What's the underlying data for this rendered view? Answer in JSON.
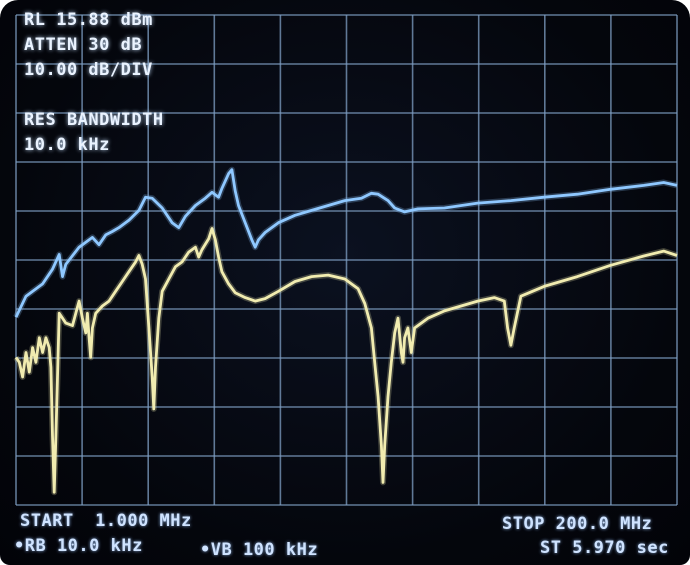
{
  "readout": {
    "ref_level": "RL 15.88 dBm",
    "attenuation": "ATTEN 30 dB",
    "scale": "10.00 dB/DIV",
    "res_bw_title": "RES BANDWIDTH",
    "res_bw_value": "10.0 kHz",
    "start": "START  1.000 MHz",
    "stop": "STOP 200.0 MHz",
    "rbw": "•RB 10.0 kHz",
    "vbw": "•VB 100 kHz",
    "sweep_time": "ST 5.970 sec"
  },
  "colors": {
    "grid": "#7f9fc4",
    "trace_blue": "#8fc8ff",
    "trace_yellow": "#f1ecb0",
    "text": "#cfe3ff"
  },
  "chart_data": {
    "type": "line",
    "title": "",
    "xlabel": "",
    "ylabel": "",
    "x_unit": "MHz",
    "y_unit": "dBm",
    "xlim": [
      1,
      200
    ],
    "ylim": [
      -84.12,
      15.88
    ],
    "x_divisions": 10,
    "y_divisions": 10,
    "grid": true,
    "series": [
      {
        "color": "#8fc8ff",
        "points": [
          [
            1,
            -45.8
          ],
          [
            4,
            -41.5
          ],
          [
            9,
            -39
          ],
          [
            12,
            -36
          ],
          [
            14,
            -33
          ],
          [
            15,
            -37.5
          ],
          [
            16,
            -35
          ],
          [
            20,
            -31.5
          ],
          [
            22,
            -30.5
          ],
          [
            24,
            -29.5
          ],
          [
            26,
            -31
          ],
          [
            28,
            -29
          ],
          [
            30,
            -28.3
          ],
          [
            32,
            -27.5
          ],
          [
            35,
            -26
          ],
          [
            38,
            -24
          ],
          [
            40,
            -21.3
          ],
          [
            42,
            -21.5
          ],
          [
            45,
            -23.5
          ],
          [
            48,
            -26.5
          ],
          [
            50,
            -27.5
          ],
          [
            52,
            -25.2
          ],
          [
            55,
            -23
          ],
          [
            58,
            -21.5
          ],
          [
            60,
            -20.3
          ],
          [
            62,
            -21.3
          ],
          [
            63,
            -19.5
          ],
          [
            65,
            -16.5
          ],
          [
            66,
            -15.7
          ],
          [
            67,
            -20
          ],
          [
            68,
            -23
          ],
          [
            70,
            -26.5
          ],
          [
            72,
            -30
          ],
          [
            73,
            -31.5
          ],
          [
            74,
            -30
          ],
          [
            76,
            -28.5
          ],
          [
            80,
            -26.5
          ],
          [
            85,
            -25
          ],
          [
            90,
            -24
          ],
          [
            95,
            -23
          ],
          [
            100,
            -22
          ],
          [
            105,
            -21.5
          ],
          [
            108,
            -20.5
          ],
          [
            110,
            -20.7
          ],
          [
            113,
            -22
          ],
          [
            115,
            -23.5
          ],
          [
            118,
            -24.3
          ],
          [
            122,
            -23.7
          ],
          [
            130,
            -23.5
          ],
          [
            140,
            -22.5
          ],
          [
            150,
            -22
          ],
          [
            160,
            -21.3
          ],
          [
            170,
            -20.7
          ],
          [
            180,
            -19.7
          ],
          [
            190,
            -18.9
          ],
          [
            196,
            -18.3
          ],
          [
            200,
            -18.9
          ]
        ]
      },
      {
        "color": "#f1ecb0",
        "points": [
          [
            1,
            -54
          ],
          [
            2,
            -55
          ],
          [
            3,
            -58
          ],
          [
            4,
            -53
          ],
          [
            5,
            -57
          ],
          [
            6,
            -52
          ],
          [
            7,
            -55
          ],
          [
            8,
            -50
          ],
          [
            9,
            -53
          ],
          [
            10,
            -50
          ],
          [
            11,
            -52
          ],
          [
            11.5,
            -56
          ],
          [
            12,
            -70
          ],
          [
            12.5,
            -81.5
          ],
          [
            13,
            -70
          ],
          [
            13.5,
            -58
          ],
          [
            14,
            -45
          ],
          [
            15,
            -46
          ],
          [
            16,
            -47
          ],
          [
            18,
            -47.5
          ],
          [
            19,
            -45
          ],
          [
            20,
            -42.5
          ],
          [
            21,
            -46
          ],
          [
            22,
            -49
          ],
          [
            22.5,
            -45
          ],
          [
            23,
            -50
          ],
          [
            23.5,
            -54
          ],
          [
            24,
            -48
          ],
          [
            25,
            -45
          ],
          [
            27,
            -43.5
          ],
          [
            29,
            -42.5
          ],
          [
            31,
            -40.5
          ],
          [
            33,
            -38.5
          ],
          [
            35,
            -36.5
          ],
          [
            37,
            -34.5
          ],
          [
            38,
            -33.2
          ],
          [
            39,
            -35
          ],
          [
            40,
            -38
          ],
          [
            41,
            -48
          ],
          [
            42,
            -58
          ],
          [
            42.5,
            -64.5
          ],
          [
            43,
            -56
          ],
          [
            44,
            -46
          ],
          [
            45,
            -40.5
          ],
          [
            47,
            -38
          ],
          [
            49,
            -35.5
          ],
          [
            51,
            -34.5
          ],
          [
            53,
            -32.5
          ],
          [
            55,
            -31.5
          ],
          [
            56,
            -33.5
          ],
          [
            57,
            -32
          ],
          [
            59,
            -29.8
          ],
          [
            60,
            -27.7
          ],
          [
            61,
            -30
          ],
          [
            62,
            -33.5
          ],
          [
            63,
            -36.5
          ],
          [
            65,
            -39
          ],
          [
            67,
            -40.8
          ],
          [
            70,
            -41.8
          ],
          [
            73,
            -42.5
          ],
          [
            76,
            -42
          ],
          [
            80,
            -40.5
          ],
          [
            85,
            -38.5
          ],
          [
            90,
            -37.5
          ],
          [
            95,
            -37.2
          ],
          [
            100,
            -38
          ],
          [
            104,
            -40
          ],
          [
            106,
            -43
          ],
          [
            108,
            -48
          ],
          [
            109,
            -55
          ],
          [
            110,
            -62
          ],
          [
            111,
            -72
          ],
          [
            111.5,
            -79.5
          ],
          [
            112,
            -72
          ],
          [
            113,
            -62
          ],
          [
            114,
            -55
          ],
          [
            115,
            -49
          ],
          [
            116,
            -46
          ],
          [
            117,
            -53
          ],
          [
            117.5,
            -55
          ],
          [
            118,
            -50
          ],
          [
            119,
            -48
          ],
          [
            120,
            -53
          ],
          [
            121,
            -48
          ],
          [
            125,
            -46
          ],
          [
            130,
            -44.5
          ],
          [
            140,
            -42.5
          ],
          [
            145,
            -41.8
          ],
          [
            148,
            -42.5
          ],
          [
            149,
            -48
          ],
          [
            150,
            -51.5
          ],
          [
            151,
            -48
          ],
          [
            153,
            -41.5
          ],
          [
            160,
            -39.5
          ],
          [
            170,
            -37.5
          ],
          [
            180,
            -35.2
          ],
          [
            190,
            -33.3
          ],
          [
            196,
            -32.3
          ],
          [
            200,
            -33.2
          ]
        ]
      }
    ]
  }
}
